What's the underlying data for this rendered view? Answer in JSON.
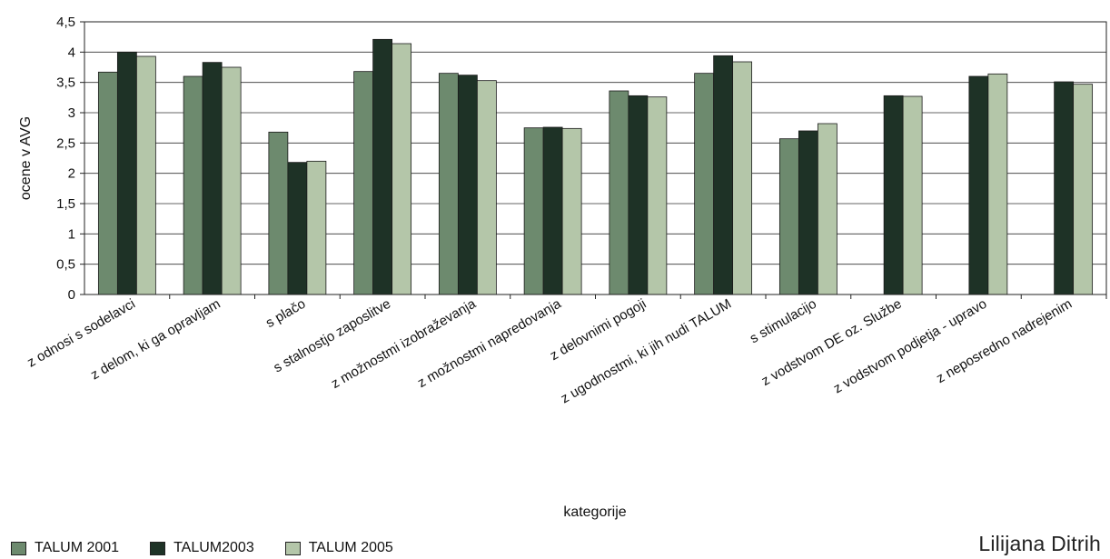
{
  "chart_data": {
    "type": "bar",
    "categories": [
      "z odnosi s sodelavci",
      "z delom, ki ga opravljam",
      "s plačo",
      "s stalnostjo zaposlitve",
      "z možnostmi izobraževanja",
      "z možnostmi napredovanja",
      "z delovnimi pogoji",
      "z ugodnostmi, ki jih nudi TALUM",
      "s stimulacijo",
      "z vodstvom DE oz. Službe",
      "z vodstvom podjetja - upravo",
      "z neposredno nadrejenim"
    ],
    "series": [
      {
        "name": "TALUM 2001",
        "color": "#6d8a6e",
        "values": [
          3.67,
          3.6,
          2.68,
          3.68,
          3.65,
          2.75,
          3.36,
          3.65,
          2.57,
          null,
          null,
          null
        ]
      },
      {
        "name": "TALUM2003",
        "color": "#1e3226",
        "values": [
          4.0,
          3.83,
          2.18,
          4.21,
          3.62,
          2.76,
          3.28,
          3.94,
          2.7,
          3.28,
          3.6,
          3.51
        ]
      },
      {
        "name": "TALUM 2005",
        "color": "#b4c6a9",
        "values": [
          3.93,
          3.75,
          2.2,
          4.14,
          3.53,
          2.74,
          3.26,
          3.84,
          2.82,
          3.27,
          3.64,
          3.47
        ]
      }
    ],
    "title": "",
    "xlabel": "kategorije",
    "ylabel": "ocene v AVG",
    "ylim": [
      0,
      4.5
    ],
    "yticks": [
      "0",
      "0,5",
      "1",
      "1,5",
      "2",
      "2,5",
      "3",
      "3,5",
      "4",
      "4,5"
    ],
    "grid": true,
    "legend": "bottom-left"
  },
  "author": "Lilijana Ditrih"
}
